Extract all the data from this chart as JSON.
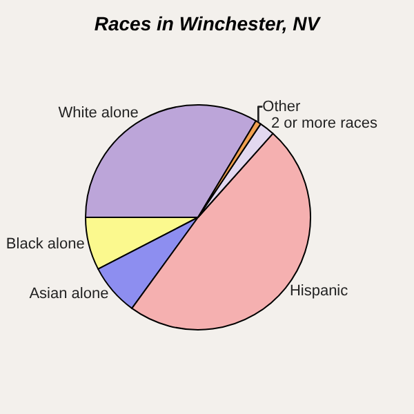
{
  "chart_data": {
    "type": "pie",
    "title": "Races in Winchester, NV",
    "categories": [
      "White alone",
      "Black alone",
      "Asian alone",
      "Hispanic",
      "2 or more races",
      "Other"
    ],
    "values": [
      33.6,
      7.6,
      7.4,
      48.4,
      2.2,
      0.8
    ],
    "colors": [
      "#bca5d9",
      "#fbf98e",
      "#8d8ef0",
      "#f5b0b0",
      "#e2d8f0",
      "#f0a050"
    ],
    "legend": false
  }
}
